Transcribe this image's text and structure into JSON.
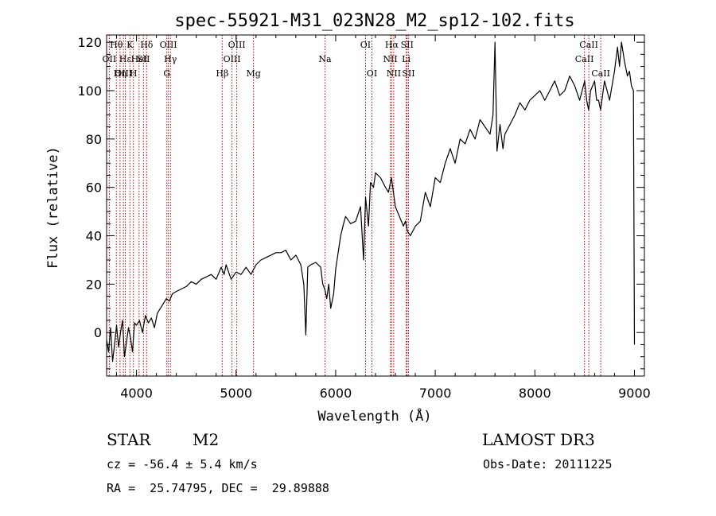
{
  "chart_data": {
    "type": "line",
    "title": "spec-55921-M31_023N28_M2_sp12-102.fits",
    "xlabel": "Wavelength (Å)",
    "ylabel": "Flux (relative)",
    "xlim": [
      3700,
      9100
    ],
    "ylim": [
      -18,
      123
    ],
    "x_ticks": [
      4000,
      5000,
      6000,
      7000,
      8000,
      9000
    ],
    "y_ticks": [
      0,
      20,
      40,
      60,
      80,
      100,
      120
    ],
    "series": [
      {
        "name": "spectrum",
        "color": "#000000",
        "x": [
          3700,
          3720,
          3740,
          3760,
          3780,
          3800,
          3820,
          3840,
          3860,
          3880,
          3900,
          3920,
          3940,
          3960,
          3980,
          4000,
          4030,
          4060,
          4090,
          4120,
          4150,
          4180,
          4210,
          4240,
          4270,
          4300,
          4330,
          4360,
          4400,
          4450,
          4500,
          4550,
          4600,
          4650,
          4700,
          4750,
          4800,
          4850,
          4880,
          4900,
          4950,
          5000,
          5050,
          5100,
          5150,
          5200,
          5250,
          5300,
          5350,
          5400,
          5450,
          5500,
          5550,
          5600,
          5650,
          5680,
          5700,
          5720,
          5750,
          5800,
          5850,
          5870,
          5890,
          5910,
          5930,
          5950,
          5980,
          6000,
          6050,
          6080,
          6100,
          6150,
          6200,
          6250,
          6280,
          6300,
          6330,
          6350,
          6380,
          6400,
          6450,
          6500,
          6530,
          6560,
          6600,
          6640,
          6680,
          6700,
          6720,
          6750,
          6800,
          6850,
          6900,
          6950,
          7000,
          7050,
          7100,
          7150,
          7200,
          7250,
          7300,
          7350,
          7400,
          7450,
          7500,
          7550,
          7580,
          7600,
          7620,
          7650,
          7680,
          7700,
          7750,
          7800,
          7850,
          7900,
          7950,
          8000,
          8050,
          8100,
          8150,
          8200,
          8250,
          8300,
          8350,
          8400,
          8450,
          8500,
          8520,
          8540,
          8560,
          8600,
          8620,
          8640,
          8660,
          8700,
          8750,
          8800,
          8830,
          8850,
          8870,
          8900,
          8930,
          8950,
          8970,
          8990,
          9000
        ],
        "y": [
          -3,
          -8,
          2,
          -12,
          -5,
          3,
          -6,
          0,
          5,
          -10,
          -4,
          2,
          -2,
          -8,
          4,
          3,
          5,
          0,
          7,
          4,
          6,
          2,
          8,
          10,
          12,
          14,
          13,
          16,
          17,
          18,
          19,
          21,
          20,
          22,
          23,
          24,
          22,
          27,
          24,
          28,
          22,
          25,
          24,
          27,
          24,
          28,
          30,
          31,
          32,
          33,
          33,
          34,
          30,
          32,
          28,
          20,
          -1,
          27,
          28,
          29,
          27,
          20,
          18,
          14,
          20,
          10,
          16,
          26,
          40,
          45,
          48,
          45,
          46,
          52,
          30,
          56,
          44,
          62,
          60,
          66,
          64,
          60,
          58,
          64,
          52,
          48,
          44,
          46,
          42,
          40,
          44,
          46,
          58,
          52,
          64,
          62,
          70,
          76,
          70,
          80,
          78,
          84,
          80,
          88,
          85,
          82,
          90,
          120,
          75,
          86,
          76,
          82,
          86,
          90,
          95,
          92,
          96,
          98,
          100,
          96,
          100,
          104,
          98,
          100,
          106,
          102,
          96,
          104,
          96,
          92,
          100,
          104,
          96,
          96,
          92,
          104,
          96,
          108,
          118,
          110,
          120,
          112,
          106,
          108,
          102,
          100,
          -5
        ]
      }
    ],
    "emission_lines": [
      {
        "label": "Hθ",
        "wave": 3798,
        "row": 0
      },
      {
        "label": "OII",
        "wave": 3727,
        "row": 1
      },
      {
        "label": "OIII",
        "wave": 3869,
        "row": 2
      },
      {
        "label": "K",
        "wave": 3934,
        "row": 0
      },
      {
        "label": "Hε",
        "wave": 3888,
        "row": 1
      },
      {
        "label": "Hη",
        "wave": 3835,
        "row": 2
      },
      {
        "label": "H",
        "wave": 3969,
        "row": 2
      },
      {
        "label": "HeI",
        "wave": 4026,
        "row": 1
      },
      {
        "label": "SII",
        "wave": 4070,
        "row": 1
      },
      {
        "label": "Hδ",
        "wave": 4102,
        "row": 0
      },
      {
        "label": "OIII",
        "wave": 4320,
        "row": 0
      },
      {
        "label": "Hγ",
        "wave": 4341,
        "row": 1
      },
      {
        "label": "G",
        "wave": 4305,
        "row": 2
      },
      {
        "label": "OIII",
        "wave": 5007,
        "row": 0
      },
      {
        "label": "OIII",
        "wave": 4959,
        "row": 1
      },
      {
        "label": "Hβ",
        "wave": 4861,
        "row": 2
      },
      {
        "label": "Mg",
        "wave": 5175,
        "row": 2
      },
      {
        "label": "Na",
        "wave": 5893,
        "row": 1
      },
      {
        "label": "OI",
        "wave": 6300,
        "row": 0
      },
      {
        "label": "OI",
        "wave": 6364,
        "row": 2
      },
      {
        "label": "Hα",
        "wave": 6563,
        "row": 0
      },
      {
        "label": "SII",
        "wave": 6717,
        "row": 0
      },
      {
        "label": "NII",
        "wave": 6548,
        "row": 1
      },
      {
        "label": "Li",
        "wave": 6708,
        "row": 1
      },
      {
        "label": "NII",
        "wave": 6583,
        "row": 2
      },
      {
        "label": "SII",
        "wave": 6731,
        "row": 2
      },
      {
        "label": "CaII",
        "wave": 8542,
        "row": 0
      },
      {
        "label": "CaII",
        "wave": 8498,
        "row": 1
      },
      {
        "label": "CaII",
        "wave": 8662,
        "row": 2
      }
    ]
  },
  "info": {
    "class": "STAR",
    "subclass": "M2",
    "survey": "LAMOST DR3",
    "cz": "cz = -56.4 ± 5.4 km/s",
    "obs_date": "Obs-Date: 20111225",
    "coords": "RA =  25.74795, DEC =  29.89888"
  },
  "colors": {
    "line_marker": "#cc0000",
    "spectrum": "#000000"
  }
}
